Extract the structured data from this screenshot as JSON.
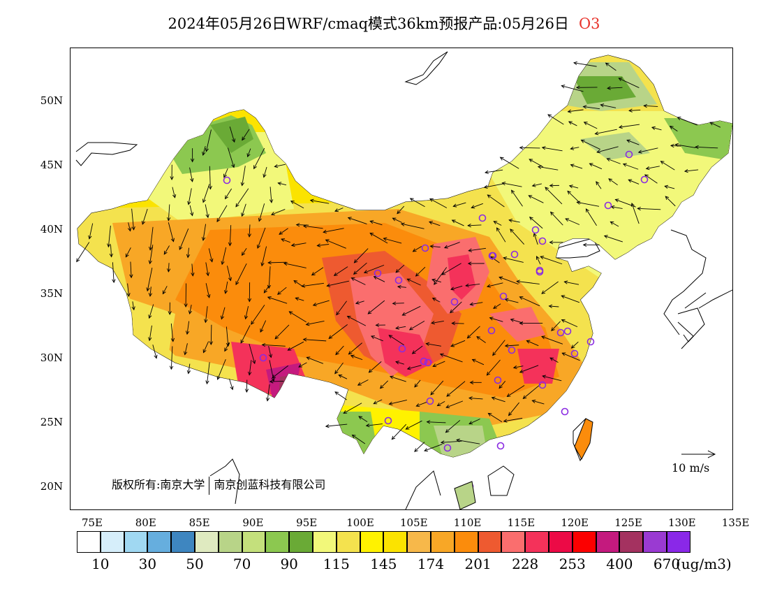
{
  "header": {
    "title": "2024年05月26日WRF/cmaq模式36km预报产品:05月26日",
    "species": "O3",
    "species_color": "#e8342c"
  },
  "axes": {
    "lat_labels": [
      "50N",
      "45N",
      "40N",
      "35N",
      "30N",
      "25N",
      "20N"
    ],
    "lon_labels": [
      "75E",
      "80E",
      "85E",
      "90E",
      "95E",
      "100E",
      "105E",
      "110E",
      "115E",
      "120E",
      "125E",
      "130E",
      "135E"
    ]
  },
  "map": {
    "copyright_left": "版权所有:南京大学",
    "copyright_right": "南京创蓝科技有限公司",
    "vector_key_label": "10 m/s",
    "station_marker_color": "#8a2be2"
  },
  "legend": {
    "colors": [
      "#ffffff",
      "#d6eefa",
      "#a0d8f2",
      "#66aede",
      "#3e86c0",
      "#dfeac0",
      "#b8d488",
      "#c4e07c",
      "#8cc850",
      "#6aaa36",
      "#f2f87a",
      "#f4e24e",
      "#fff200",
      "#fbe300",
      "#f7b84a",
      "#f8a726",
      "#fb8c0c",
      "#ee5a30",
      "#fa6e6e",
      "#f4325a",
      "#ec0a46",
      "#fc0000",
      "#c41a7e",
      "#a43260",
      "#9a3ad2",
      "#8a28e8"
    ],
    "tick_labels": [
      "10",
      "30",
      "50",
      "70",
      "90",
      "115",
      "145",
      "174",
      "201",
      "228",
      "253",
      "400",
      "670"
    ],
    "unit": "(ug/m3)"
  }
}
